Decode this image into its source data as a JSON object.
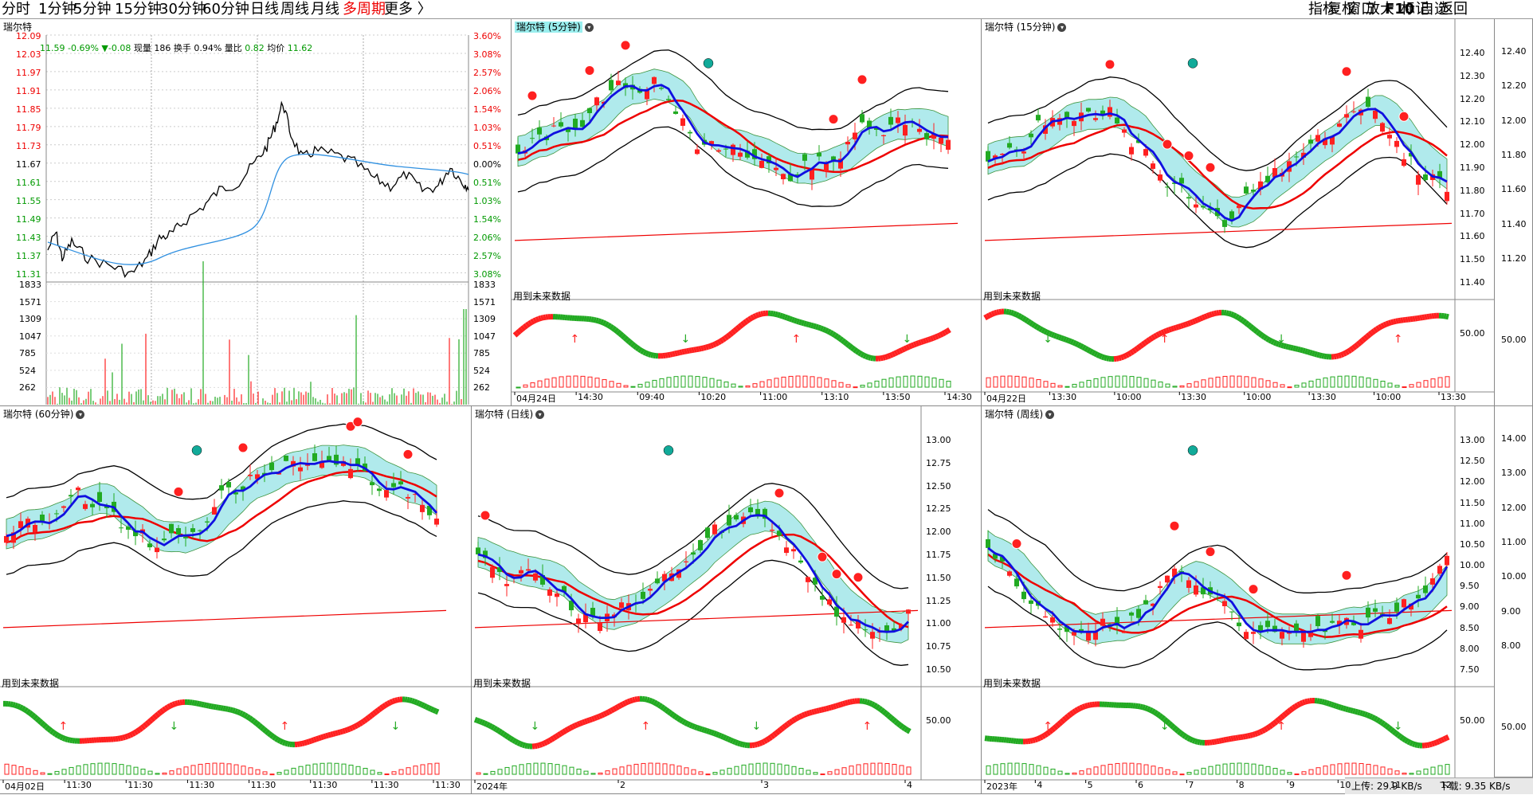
{
  "toolbar": {
    "periods": [
      "分时",
      "1分钟",
      "5分钟",
      "15分钟",
      "30分钟",
      "60分钟",
      "日线",
      "周线",
      "月线",
      "多周期",
      "更多 〉"
    ],
    "active": "多周期",
    "right": [
      "指标",
      "复权",
      "窗口",
      "放大",
      "F10",
      "标记",
      "自选",
      "返回"
    ]
  },
  "intraday": {
    "title": "瑞尔特",
    "price": "11.59",
    "change_pct": "-0.69%",
    "change": "▼-0.08",
    "volume_label": "现量",
    "volume": "186",
    "turnover_label": "换手",
    "turnover": "0.94%",
    "ratio_label": "量比",
    "ratio": "0.82",
    "avg_label": "均价",
    "avg": "11.62",
    "price_ticks": [
      "12.09",
      "12.03",
      "11.97",
      "11.91",
      "11.85",
      "11.79",
      "11.73",
      "11.67",
      "11.61",
      "11.55",
      "11.49",
      "11.43",
      "11.37",
      "11.31"
    ],
    "pct_ticks": [
      "3.60%",
      "3.08%",
      "2.57%",
      "2.06%",
      "1.54%",
      "1.03%",
      "0.51%",
      "0.00%",
      "0.51%",
      "1.03%",
      "1.54%",
      "2.06%",
      "2.57%",
      "3.08%"
    ],
    "vol_ticks": [
      "1833",
      "1571",
      "1309",
      "1047",
      "785",
      "524",
      "262"
    ]
  },
  "panels": [
    {
      "title": "瑞尔特 (5分钟)",
      "highlight": true,
      "future": "用到未来数据",
      "mid": "",
      "yticks": [],
      "xticks": [
        "04月24日",
        "14:30",
        "09:40",
        "10:20",
        "11:00",
        "13:10",
        "13:50",
        "14:30"
      ]
    },
    {
      "title": "瑞尔特 (15分钟)",
      "highlight": false,
      "future": "用到未来数据",
      "mid": "50.00",
      "yticks": [
        "12.40",
        "12.30",
        "12.20",
        "12.10",
        "12.00",
        "11.90",
        "11.80",
        "11.70",
        "11.60",
        "11.50",
        "11.40"
      ],
      "xticks": [
        "04月22日",
        "13:30",
        "10:00",
        "13:30",
        "10:00",
        "13:30",
        "10:00",
        "13:30"
      ]
    },
    {
      "title": "瑞尔特 (60分钟)",
      "highlight": false,
      "future": "用到未来数据",
      "mid": "",
      "yticks": [],
      "xticks": [
        "04月02日",
        "11:30",
        "11:30",
        "11:30",
        "11:30",
        "11:30",
        "11:30",
        "11:30"
      ]
    },
    {
      "title": "瑞尔特 (日线)",
      "highlight": false,
      "future": "用到未来数据",
      "mid": "50.00",
      "yticks": [
        "13.00",
        "12.75",
        "12.50",
        "12.25",
        "12.00",
        "11.75",
        "11.50",
        "11.25",
        "11.00",
        "10.75",
        "10.50"
      ],
      "xticks": [
        "2024年",
        "2",
        "3",
        "4"
      ]
    },
    {
      "title": "瑞尔特 (周线)",
      "highlight": false,
      "future": "用到未来数据",
      "mid": "50.00",
      "yticks": [
        "13.00",
        "12.50",
        "12.00",
        "11.50",
        "11.00",
        "10.50",
        "10.00",
        "9.50",
        "9.00",
        "8.50",
        "8.00",
        "7.50"
      ],
      "xticks": [
        "2023年",
        "4",
        "5",
        "6",
        "7",
        "8",
        "9",
        "10",
        "11",
        "12"
      ]
    }
  ],
  "side_axes": {
    "top": {
      "ticks": [
        "12.40",
        "12.20",
        "12.00",
        "11.80",
        "11.60",
        "11.40",
        "11.20"
      ],
      "mid": "50.00"
    },
    "bottom": {
      "ticks": [
        "14.00",
        "13.00",
        "12.00",
        "11.00",
        "10.00",
        "9.00",
        "8.00"
      ],
      "mid": "50.00"
    }
  },
  "status": {
    "up_label": "上传:",
    "up": "29.9 KB/s",
    "down_label": "下载:",
    "down": "9.35 KB/s"
  },
  "colors": {
    "up": "#ff2020",
    "down": "#22aa22",
    "ma": "#1010e0",
    "band": "#a8e8ea",
    "band_green": "#8ee08e",
    "avg_line": "#3090e0"
  }
}
